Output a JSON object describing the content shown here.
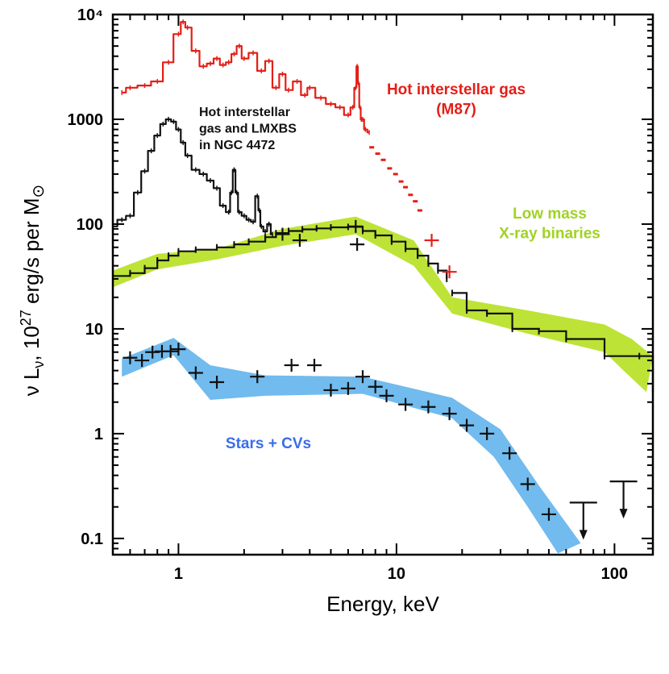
{
  "chart_data": {
    "type": "line",
    "title": "",
    "xlabel": "Energy, keV",
    "ylabel": "ν Lν, 10^27 erg/s per M⊙",
    "ylabel_parts": {
      "nu": "ν L",
      "sub": "ν",
      "comma": ", 10",
      "sup": "27",
      "rest": " erg/s per M",
      "sun": "⊙"
    },
    "xscale": "log",
    "yscale": "log",
    "xlim": [
      0.5,
      150
    ],
    "ylim": [
      0.07,
      10000
    ],
    "x_ticks": [
      {
        "v": 1,
        "label": "1"
      },
      {
        "v": 10,
        "label": "10"
      },
      {
        "v": 100,
        "label": "100"
      }
    ],
    "y_ticks": [
      {
        "v": 0.1,
        "label": "0.1"
      },
      {
        "v": 1,
        "label": "1"
      },
      {
        "v": 10,
        "label": "10"
      },
      {
        "v": 100,
        "label": "100"
      },
      {
        "v": 1000,
        "label": "1000"
      },
      {
        "v": 10000,
        "label": "10⁴"
      }
    ],
    "bands": [
      {
        "name": "Low mass X-ray binaries",
        "color": "#bde336",
        "segments": [
          {
            "upper": [
              [
                0.5,
                36
              ],
              [
                0.8,
                52
              ],
              [
                1.5,
                58
              ],
              [
                3,
                90
              ],
              [
                6.5,
                118
              ],
              [
                12,
                70
              ],
              [
                18,
                20
              ]
            ],
            "lower": [
              [
                0.5,
                25
              ],
              [
                0.8,
                37
              ],
              [
                1.5,
                46
              ],
              [
                3,
                62
              ],
              [
                6.5,
                80
              ],
              [
                12,
                40
              ],
              [
                18,
                14
              ]
            ]
          },
          {
            "upper": [
              [
                18,
                20
              ],
              [
                40,
                15
              ],
              [
                90,
                11
              ],
              [
                120,
                8
              ],
              [
                150,
                5.5
              ]
            ],
            "lower": [
              [
                18,
                14
              ],
              [
                40,
                9
              ],
              [
                90,
                6
              ],
              [
                110,
                4
              ],
              [
                140,
                2.5
              ]
            ]
          }
        ]
      },
      {
        "name": "Stars + CVs",
        "color": "#71bbee",
        "segments": [
          {
            "upper": [
              [
                0.55,
                5.2
              ],
              [
                0.95,
                8.2
              ],
              [
                1.4,
                4.5
              ],
              [
                2.5,
                3.6
              ],
              [
                7,
                3.5
              ],
              [
                18,
                2.2
              ],
              [
                30,
                1.1
              ],
              [
                45,
                0.32
              ],
              [
                70,
                0.09
              ]
            ],
            "lower": [
              [
                0.55,
                3.5
              ],
              [
                0.95,
                5.6
              ],
              [
                1.4,
                2.1
              ],
              [
                2.5,
                2.3
              ],
              [
                7,
                2.4
              ],
              [
                18,
                1.4
              ],
              [
                28,
                0.6
              ],
              [
                40,
                0.2
              ],
              [
                55,
                0.072
              ]
            ]
          }
        ]
      }
    ],
    "series": [
      {
        "name": "Hot interstellar gas (M87)",
        "color": "#e41e16",
        "type": "spectrum",
        "x": [
          0.55,
          0.6,
          0.7,
          0.8,
          0.9,
          1.0,
          1.05,
          1.1,
          1.2,
          1.3,
          1.4,
          1.5,
          1.6,
          1.7,
          1.8,
          1.9,
          2.0,
          2.2,
          2.4,
          2.6,
          2.8,
          3.0,
          3.2,
          3.5,
          3.8,
          4.0,
          4.5,
          5.0,
          5.5,
          6.0,
          6.3,
          6.5,
          6.6,
          6.7,
          6.8,
          6.9,
          7.0,
          7.2,
          7.5
        ],
        "y": [
          1800,
          2000,
          2100,
          2300,
          3500,
          6500,
          8500,
          7500,
          4500,
          3200,
          3400,
          3800,
          3300,
          3500,
          4200,
          5000,
          3800,
          4300,
          2900,
          3600,
          2000,
          2700,
          1900,
          2300,
          1700,
          2000,
          1600,
          1400,
          1300,
          1100,
          1300,
          2000,
          3200,
          2200,
          1300,
          1000,
          1000,
          800,
          750
        ]
      },
      {
        "name": "Hot interstellar gas (M87) dots",
        "color": "#e41e16",
        "type": "dots",
        "x": [
          7.7,
          8.2,
          8.7,
          9.3,
          9.9,
          10.5,
          11.0,
          11.6,
          12.2,
          12.8
        ],
        "y": [
          540,
          470,
          410,
          340,
          300,
          255,
          225,
          190,
          165,
          135
        ]
      },
      {
        "name": "Hot interstellar gas and LMXBS in NGC 4472",
        "color": "#111111",
        "type": "spectrum",
        "x": [
          0.5,
          0.55,
          0.6,
          0.65,
          0.7,
          0.75,
          0.8,
          0.85,
          0.9,
          0.95,
          1.0,
          1.05,
          1.1,
          1.2,
          1.3,
          1.4,
          1.5,
          1.6,
          1.7,
          1.75,
          1.8,
          1.85,
          1.9,
          2.0,
          2.1,
          2.2,
          2.3,
          2.35,
          2.4,
          2.5,
          2.6,
          2.7
        ],
        "y": [
          95,
          110,
          120,
          200,
          320,
          500,
          700,
          900,
          1000,
          950,
          800,
          600,
          450,
          330,
          300,
          260,
          220,
          150,
          130,
          200,
          330,
          200,
          130,
          120,
          110,
          105,
          185,
          135,
          95,
          85,
          100,
          80
        ]
      },
      {
        "name": "Low mass X-ray binaries",
        "color": "#111111",
        "type": "steps",
        "x": [
          0.5,
          0.6,
          0.7,
          0.8,
          0.9,
          1.0,
          1.2,
          1.5,
          1.8,
          2.1,
          2.5,
          2.8,
          3.2,
          3.7,
          4.3,
          5.0,
          6.0,
          7.0,
          8.0,
          9.5,
          11,
          12.5,
          14,
          15.5,
          17
        ],
        "y": [
          32,
          34,
          38,
          45,
          50,
          55,
          57,
          60,
          64,
          68,
          75,
          82,
          86,
          89,
          91,
          93,
          94,
          86,
          78,
          68,
          58,
          50,
          42,
          36,
          30
        ]
      },
      {
        "name": "Low mass X-ray binaries high energy",
        "color": "#111111",
        "type": "steps",
        "x": [
          18,
          21,
          26,
          34,
          45,
          60,
          90,
          130,
          150
        ],
        "y": [
          22,
          15,
          14,
          10,
          9.5,
          8,
          5.5,
          5.5,
          2.5
        ]
      },
      {
        "name": "Stars + CVs",
        "color": "#111111",
        "type": "points",
        "x": [
          0.6,
          0.68,
          0.76,
          0.84,
          0.92,
          1.0,
          1.2,
          1.5,
          2.3,
          3.3,
          4.2,
          5.0,
          6.0,
          7.0,
          8.0,
          9.0,
          11.0,
          14.0,
          17.5,
          21.0,
          26.0,
          33.0,
          40.0,
          50.0
        ],
        "y": [
          5.3,
          5.0,
          6.0,
          6.1,
          6.1,
          6.4,
          3.8,
          3.1,
          3.5,
          4.5,
          4.5,
          2.6,
          2.7,
          3.5,
          2.8,
          2.3,
          1.9,
          1.8,
          1.55,
          1.2,
          1.0,
          0.65,
          0.33,
          0.17
        ]
      },
      {
        "name": "Extra LMXB error crosses",
        "color": "#111111",
        "type": "points",
        "x": [
          3.0,
          3.6,
          6.5,
          6.6
        ],
        "y": [
          80,
          70,
          95,
          64
        ]
      },
      {
        "name": "Red upper points",
        "color": "#e41e16",
        "type": "points",
        "x": [
          14.5,
          17.5
        ],
        "y": [
          70,
          35
        ]
      },
      {
        "name": "Upper limits",
        "color": "#111111",
        "type": "limits",
        "x": [
          72,
          110
        ],
        "y": [
          0.22,
          0.35
        ]
      }
    ],
    "annotations": [
      {
        "lines": [
          "Hot interstellar gas",
          "(M87)"
        ],
        "color": "#e41e16"
      },
      {
        "lines": [
          "Hot interstellar",
          "gas  and LMXBS",
          "in NGC 4472"
        ],
        "color": "#111111"
      },
      {
        "lines": [
          "Low mass",
          "X-ray binaries"
        ],
        "color": "#9fd323"
      },
      {
        "lines": [
          "Stars + CVs"
        ],
        "color": "#3a6de8"
      }
    ]
  }
}
